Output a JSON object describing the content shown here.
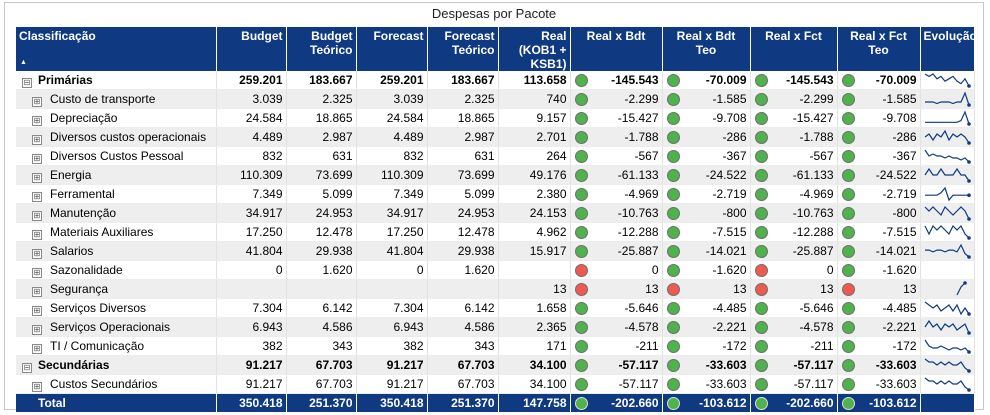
{
  "title": "Despesas por Pacote",
  "columns": [
    {
      "key": "classificacao",
      "label": "Classificação"
    },
    {
      "key": "budget",
      "label": "Budget"
    },
    {
      "key": "budget_teorico",
      "label": "Budget Teórico"
    },
    {
      "key": "forecast",
      "label": "Forecast"
    },
    {
      "key": "forecast_teorico",
      "label": "Forecast Teórico"
    },
    {
      "key": "real",
      "label": "Real (KOB1 + KSB1)"
    },
    {
      "key": "real_x_bdt",
      "label": "Real x Bdt"
    },
    {
      "key": "real_x_bdt_teo",
      "label": "Real x Bdt Teo"
    },
    {
      "key": "real_x_fct",
      "label": "Real x Fct"
    },
    {
      "key": "real_x_fct_teo",
      "label": "Real x Fct Teo"
    },
    {
      "key": "evolucao",
      "label": "Evolução"
    }
  ],
  "sort_indicator": "▲",
  "colors": {
    "header_bg": "#0f3a82",
    "ok": "#4fb24c",
    "alert": "#ef5a50"
  },
  "rows": [
    {
      "type": "group",
      "expander": "⊟",
      "name": "Primárias",
      "budget": "259.201",
      "budget_teorico": "183.667",
      "forecast": "259.201",
      "forecast_teorico": "183.667",
      "real": "113.658",
      "bdt": {
        "v": "-145.543",
        "s": "green"
      },
      "bdt_teo": {
        "v": "-70.009",
        "s": "green"
      },
      "fct": {
        "v": "-145.543",
        "s": "green"
      },
      "fct_teo": {
        "v": "-70.009",
        "s": "green"
      },
      "spark": [
        6,
        5,
        6,
        4,
        5,
        3,
        4,
        5,
        3,
        2,
        4,
        1
      ]
    },
    {
      "type": "child",
      "expander": "⊞",
      "name": "Custo de transporte",
      "budget": "3.039",
      "budget_teorico": "2.325",
      "forecast": "3.039",
      "forecast_teorico": "2.325",
      "real": "740",
      "bdt": {
        "v": "-2.299",
        "s": "green"
      },
      "bdt_teo": {
        "v": "-1.585",
        "s": "green"
      },
      "fct": {
        "v": "-2.299",
        "s": "green"
      },
      "fct_teo": {
        "v": "-1.585",
        "s": "green"
      },
      "spark": [
        3,
        3,
        3,
        2,
        3,
        3,
        3,
        2,
        3,
        3,
        9,
        1
      ]
    },
    {
      "type": "child",
      "expander": "⊞",
      "name": "Depreciação",
      "budget": "24.584",
      "budget_teorico": "18.865",
      "forecast": "24.584",
      "forecast_teorico": "18.865",
      "real": "9.157",
      "bdt": {
        "v": "-15.427",
        "s": "green"
      },
      "bdt_teo": {
        "v": "-9.708",
        "s": "green"
      },
      "fct": {
        "v": "-15.427",
        "s": "green"
      },
      "fct_teo": {
        "v": "-9.708",
        "s": "green"
      },
      "spark": [
        3,
        3,
        3,
        3,
        3,
        3,
        3,
        3,
        3,
        4,
        9,
        2
      ]
    },
    {
      "type": "child",
      "expander": "⊞",
      "name": "Diversos custos operacionais",
      "budget": "4.489",
      "budget_teorico": "2.987",
      "forecast": "4.489",
      "forecast_teorico": "2.987",
      "real": "2.701",
      "bdt": {
        "v": "-1.788",
        "s": "green"
      },
      "bdt_teo": {
        "v": "-286",
        "s": "green"
      },
      "fct": {
        "v": "-1.788",
        "s": "green"
      },
      "fct_teo": {
        "v": "-286",
        "s": "green"
      },
      "spark": [
        5,
        6,
        4,
        6,
        5,
        7,
        4,
        6,
        5,
        6,
        5,
        3
      ]
    },
    {
      "type": "child",
      "expander": "⊞",
      "name": "Diversos Custos Pessoal",
      "budget": "832",
      "budget_teorico": "631",
      "forecast": "832",
      "forecast_teorico": "631",
      "real": "264",
      "bdt": {
        "v": "-567",
        "s": "green"
      },
      "bdt_teo": {
        "v": "-367",
        "s": "green"
      },
      "fct": {
        "v": "-567",
        "s": "green"
      },
      "fct_teo": {
        "v": "-367",
        "s": "green"
      },
      "spark": [
        8,
        5,
        6,
        5,
        5,
        4,
        5,
        4,
        4,
        3,
        4,
        2
      ]
    },
    {
      "type": "child",
      "expander": "⊞",
      "name": "Energia",
      "budget": "110.309",
      "budget_teorico": "73.699",
      "forecast": "110.309",
      "forecast_teorico": "73.699",
      "real": "49.176",
      "bdt": {
        "v": "-61.133",
        "s": "green"
      },
      "bdt_teo": {
        "v": "-24.522",
        "s": "green"
      },
      "fct": {
        "v": "-61.133",
        "s": "green"
      },
      "fct_teo": {
        "v": "-24.522",
        "s": "green"
      },
      "spark": [
        5,
        6,
        5,
        5,
        6,
        5,
        5,
        5,
        6,
        5,
        5,
        4
      ]
    },
    {
      "type": "child",
      "expander": "⊞",
      "name": "Ferramental",
      "budget": "7.349",
      "budget_teorico": "5.099",
      "forecast": "7.349",
      "forecast_teorico": "5.099",
      "real": "2.380",
      "bdt": {
        "v": "-4.969",
        "s": "green"
      },
      "bdt_teo": {
        "v": "-2.719",
        "s": "green"
      },
      "fct": {
        "v": "-4.969",
        "s": "green"
      },
      "fct_teo": {
        "v": "-2.719",
        "s": "green"
      },
      "spark": [
        5,
        5,
        5,
        5,
        6,
        8,
        3,
        5,
        5,
        5,
        5,
        5
      ]
    },
    {
      "type": "child",
      "expander": "⊞",
      "name": "Manutenção",
      "budget": "34.917",
      "budget_teorico": "24.953",
      "forecast": "34.917",
      "forecast_teorico": "24.953",
      "real": "24.153",
      "bdt": {
        "v": "-10.763",
        "s": "green"
      },
      "bdt_teo": {
        "v": "-800",
        "s": "green"
      },
      "fct": {
        "v": "-10.763",
        "s": "green"
      },
      "fct_teo": {
        "v": "-800",
        "s": "green"
      },
      "spark": [
        6,
        5,
        6,
        5,
        4,
        6,
        5,
        4,
        5,
        6,
        5,
        3
      ]
    },
    {
      "type": "child",
      "expander": "⊞",
      "name": "Materiais Auxiliares",
      "budget": "17.250",
      "budget_teorico": "12.478",
      "forecast": "17.250",
      "forecast_teorico": "12.478",
      "real": "4.962",
      "bdt": {
        "v": "-12.288",
        "s": "green"
      },
      "bdt_teo": {
        "v": "-7.515",
        "s": "green"
      },
      "fct": {
        "v": "-12.288",
        "s": "green"
      },
      "fct_teo": {
        "v": "-7.515",
        "s": "green"
      },
      "spark": [
        6,
        4,
        6,
        5,
        6,
        5,
        4,
        6,
        5,
        6,
        4,
        3
      ]
    },
    {
      "type": "child",
      "expander": "⊞",
      "name": "Salarios",
      "budget": "41.804",
      "budget_teorico": "29.938",
      "forecast": "41.804",
      "forecast_teorico": "29.938",
      "real": "15.917",
      "bdt": {
        "v": "-25.887",
        "s": "green"
      },
      "bdt_teo": {
        "v": "-14.021",
        "s": "green"
      },
      "fct": {
        "v": "-25.887",
        "s": "green"
      },
      "fct_teo": {
        "v": "-14.021",
        "s": "green"
      },
      "spark": [
        6,
        6,
        5,
        6,
        6,
        5,
        6,
        6,
        5,
        9,
        4,
        2
      ]
    },
    {
      "type": "child",
      "expander": "⊞",
      "name": "Sazonalidade",
      "budget": "0",
      "budget_teorico": "1.620",
      "forecast": "0",
      "forecast_teorico": "1.620",
      "real": "",
      "bdt": {
        "v": "0",
        "s": "red"
      },
      "bdt_teo": {
        "v": "-1.620",
        "s": "green"
      },
      "fct": {
        "v": "0",
        "s": "red"
      },
      "fct_teo": {
        "v": "-1.620",
        "s": "green"
      },
      "spark": []
    },
    {
      "type": "child",
      "expander": "⊞",
      "name": "Segurança",
      "budget": "",
      "budget_teorico": "",
      "forecast": "",
      "forecast_teorico": "",
      "real": "13",
      "bdt": {
        "v": "13",
        "s": "red"
      },
      "bdt_teo": {
        "v": "13",
        "s": "red"
      },
      "fct": {
        "v": "13",
        "s": "red"
      },
      "fct_teo": {
        "v": "13",
        "s": "red"
      },
      "spark": [
        null,
        null,
        null,
        null,
        null,
        null,
        null,
        null,
        2,
        6,
        8,
        null
      ]
    },
    {
      "type": "child",
      "expander": "⊞",
      "name": "Serviços Diversos",
      "budget": "7.304",
      "budget_teorico": "6.142",
      "forecast": "7.304",
      "forecast_teorico": "6.142",
      "real": "1.658",
      "bdt": {
        "v": "-5.646",
        "s": "green"
      },
      "bdt_teo": {
        "v": "-4.485",
        "s": "green"
      },
      "fct": {
        "v": "-5.646",
        "s": "green"
      },
      "fct_teo": {
        "v": "-4.485",
        "s": "green"
      },
      "spark": [
        7,
        6,
        5,
        6,
        4,
        5,
        6,
        4,
        6,
        3,
        5,
        3
      ]
    },
    {
      "type": "child",
      "expander": "⊞",
      "name": "Serviços Operacionais",
      "budget": "6.943",
      "budget_teorico": "4.586",
      "forecast": "6.943",
      "forecast_teorico": "4.586",
      "real": "2.365",
      "bdt": {
        "v": "-4.578",
        "s": "green"
      },
      "bdt_teo": {
        "v": "-2.221",
        "s": "green"
      },
      "fct": {
        "v": "-4.578",
        "s": "green"
      },
      "fct_teo": {
        "v": "-2.221",
        "s": "green"
      },
      "spark": [
        5,
        7,
        5,
        6,
        4,
        6,
        5,
        6,
        4,
        5,
        6,
        3
      ]
    },
    {
      "type": "child",
      "expander": "⊞",
      "name": "TI / Comunicação",
      "budget": "382",
      "budget_teorico": "343",
      "forecast": "382",
      "forecast_teorico": "343",
      "real": "171",
      "bdt": {
        "v": "-211",
        "s": "green"
      },
      "bdt_teo": {
        "v": "-172",
        "s": "green"
      },
      "fct": {
        "v": "-211",
        "s": "green"
      },
      "fct_teo": {
        "v": "-172",
        "s": "green"
      },
      "spark": [
        9,
        6,
        5,
        5,
        6,
        5,
        4,
        5,
        5,
        4,
        5,
        3
      ]
    },
    {
      "type": "group",
      "expander": "⊟",
      "name": "Secundárias",
      "budget": "91.217",
      "budget_teorico": "67.703",
      "forecast": "91.217",
      "forecast_teorico": "67.703",
      "real": "34.100",
      "bdt": {
        "v": "-57.117",
        "s": "green"
      },
      "bdt_teo": {
        "v": "-33.603",
        "s": "green"
      },
      "fct": {
        "v": "-57.117",
        "s": "green"
      },
      "fct_teo": {
        "v": "-33.603",
        "s": "green"
      },
      "spark": [
        7,
        6,
        6,
        5,
        6,
        5,
        6,
        5,
        5,
        6,
        4,
        3
      ]
    },
    {
      "type": "child",
      "expander": "⊞",
      "name": "Custos Secundários",
      "budget": "91.217",
      "budget_teorico": "67.703",
      "forecast": "91.217",
      "forecast_teorico": "67.703",
      "real": "34.100",
      "bdt": {
        "v": "-57.117",
        "s": "green"
      },
      "bdt_teo": {
        "v": "-33.603",
        "s": "green"
      },
      "fct": {
        "v": "-57.117",
        "s": "green"
      },
      "fct_teo": {
        "v": "-33.603",
        "s": "green"
      },
      "spark": [
        7,
        6,
        6,
        5,
        6,
        5,
        6,
        5,
        5,
        6,
        4,
        3
      ]
    }
  ],
  "total": {
    "name": "Total",
    "budget": "350.418",
    "budget_teorico": "251.370",
    "forecast": "350.418",
    "forecast_teorico": "251.370",
    "real": "147.758",
    "bdt": {
      "v": "-202.660",
      "s": "green"
    },
    "bdt_teo": {
      "v": "-103.612",
      "s": "green"
    },
    "fct": {
      "v": "-202.660",
      "s": "green"
    },
    "fct_teo": {
      "v": "-103.612",
      "s": "green"
    }
  }
}
